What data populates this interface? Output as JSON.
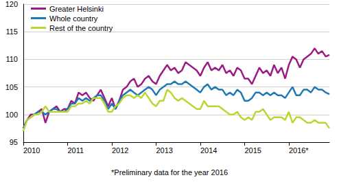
{
  "chart_data": {
    "type": "line",
    "annotation": "*Preliminary data for the year 2016",
    "categories": [
      "2010",
      null,
      null,
      null,
      null,
      null,
      null,
      null,
      null,
      null,
      null,
      null,
      "2011",
      null,
      null,
      null,
      null,
      null,
      null,
      null,
      null,
      null,
      null,
      null,
      "2012",
      null,
      null,
      null,
      null,
      null,
      null,
      null,
      null,
      null,
      null,
      null,
      "2013",
      null,
      null,
      null,
      null,
      null,
      null,
      null,
      null,
      null,
      null,
      null,
      "2014",
      null,
      null,
      null,
      null,
      null,
      null,
      null,
      null,
      null,
      null,
      null,
      "2015",
      null,
      null,
      null,
      null,
      null,
      null,
      null,
      null,
      null,
      null,
      null,
      "2016*",
      null,
      null,
      null,
      null,
      null,
      null,
      null,
      null,
      null,
      null,
      null
    ],
    "series": [
      {
        "name": "Greater Helsinki",
        "color": "#9b1b84",
        "values": [
          97.5,
          99,
          100,
          100,
          100.5,
          101,
          98.5,
          100.5,
          101,
          101.5,
          100.5,
          101,
          101,
          102.5,
          102,
          104,
          103.5,
          104,
          103,
          102.5,
          103.5,
          104.5,
          103,
          101.5,
          103,
          101,
          102.5,
          104.5,
          105,
          106,
          106.5,
          105,
          105.5,
          106.5,
          107,
          106,
          105.5,
          107,
          108,
          109,
          108,
          108.5,
          107.5,
          108,
          109.5,
          109,
          108.5,
          108,
          107,
          108.5,
          109.5,
          108,
          108.5,
          108,
          109,
          107.5,
          108,
          107,
          108.5,
          108,
          106.5,
          106.5,
          105.5,
          107,
          108.5,
          107.5,
          108,
          107,
          109,
          107.5,
          108.5,
          106.5,
          109,
          110.5,
          110,
          108.5,
          110,
          110.5,
          111,
          112,
          111,
          111.5,
          110.5,
          110.8
        ]
      },
      {
        "name": "Whole country",
        "color": "#1f78b4",
        "values": [
          97.5,
          99,
          99.5,
          100,
          100.5,
          100.5,
          100,
          100.5,
          101,
          101,
          100.5,
          100.5,
          101,
          102,
          102,
          103,
          102.5,
          103,
          102.5,
          103,
          103.5,
          103.5,
          102.5,
          101,
          102,
          101,
          102.5,
          103.5,
          104,
          104.5,
          104,
          103.5,
          104,
          104.5,
          105,
          104.5,
          103.5,
          104.5,
          105,
          105.5,
          105.5,
          106,
          105.5,
          105.5,
          106,
          105.5,
          105,
          104.5,
          104,
          105,
          105.5,
          104.5,
          105,
          104.5,
          104.5,
          103.5,
          104,
          103.5,
          104.5,
          104,
          102.5,
          102.5,
          103,
          104,
          104,
          103.5,
          104,
          103.5,
          104,
          103.5,
          103.5,
          103,
          104,
          105,
          103.5,
          103.5,
          104.5,
          104.5,
          104,
          105,
          104.5,
          104.5,
          104,
          103.7
        ]
      },
      {
        "name": "Rest of the country",
        "color": "#bcd631",
        "values": [
          97,
          99,
          99.5,
          100,
          100,
          100.5,
          101.5,
          100.5,
          100.5,
          100.5,
          100.5,
          100.5,
          100.5,
          101.5,
          101.5,
          102,
          102,
          102.5,
          102,
          103,
          103,
          103,
          102,
          100.5,
          100.5,
          101.5,
          102,
          103,
          103.5,
          103.5,
          103,
          103.5,
          103,
          104,
          103,
          102,
          101.5,
          102.5,
          102.5,
          104.5,
          104,
          103,
          102.5,
          103,
          102.5,
          102,
          101.5,
          101,
          101,
          102.5,
          101.5,
          101.5,
          101.5,
          101.5,
          101,
          100.5,
          100,
          100,
          100.5,
          99.5,
          99,
          99.5,
          99,
          100.5,
          100.5,
          101,
          100,
          99,
          99.5,
          99.5,
          99.5,
          99,
          100.5,
          98.5,
          99.5,
          99.5,
          99,
          98.5,
          98.5,
          99,
          98.5,
          98.5,
          98.5,
          97.5
        ]
      }
    ],
    "ylim": [
      95,
      120
    ],
    "yticks": [
      95,
      100,
      105,
      110,
      115,
      120
    ],
    "grid": true,
    "legend": "upper left"
  }
}
